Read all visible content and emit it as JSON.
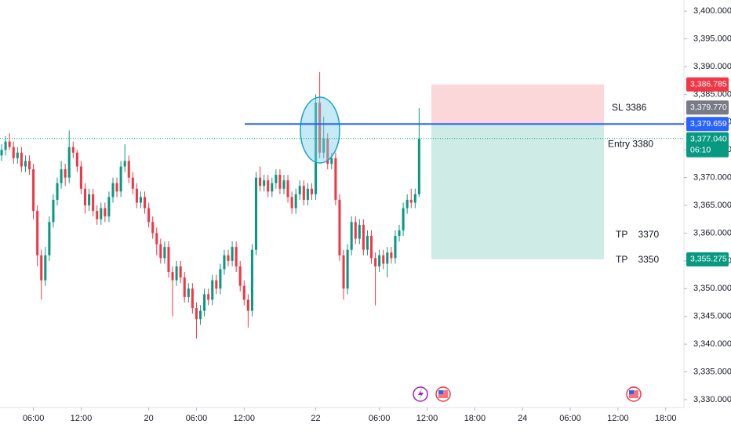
{
  "chart_data": {
    "type": "candlestick",
    "up_color": "#089981",
    "down_color": "#f23645",
    "open": [
      3374.0,
      3375.0,
      3376.5,
      3375.5,
      3373.5,
      3374.5,
      3372.0,
      3373.0,
      3371.5,
      3364.0,
      3356.0,
      3351.5,
      3356.0,
      3362.0,
      3366.0,
      3369.0,
      3371.5,
      3370.0,
      3375.5,
      3374.5,
      3372.0,
      3368.0,
      3365.0,
      3367.0,
      3364.0,
      3362.5,
      3364.5,
      3363.0,
      3366.5,
      3369.0,
      3367.5,
      3372.0,
      3373.0,
      3370.0,
      3368.0,
      3365.5,
      3366.5,
      3364.5,
      3362.0,
      3360.0,
      3358.0,
      3355.5,
      3357.5,
      3353.0,
      3351.5,
      3354.0,
      3352.0,
      3348.5,
      3350.0,
      3346.5,
      3344.5,
      3346.0,
      3349.0,
      3348.0,
      3351.5,
      3350.0,
      3353.5,
      3356.0,
      3355.0,
      3357.5,
      3354.0,
      3350.5,
      3348.0,
      3346.0,
      3357.0,
      3370.0,
      3368.5,
      3369.5,
      3367.5,
      3369.0,
      3370.5,
      3368.0,
      3369.5,
      3366.5,
      3364.5,
      3367.0,
      3368.5,
      3366.0,
      3368.0,
      3367.0,
      3383.5,
      3374.5,
      3377.0,
      3372.5,
      3373.5,
      3366.0,
      3356.0,
      3350.0,
      3357.0,
      3362.0,
      3359.0,
      3361.5,
      3357.0,
      3359.5,
      3355.5,
      3354.0,
      3356.0,
      3354.5,
      3356.5,
      3355.5,
      3359.5,
      3360.5,
      3364.5,
      3366.0,
      3365.5,
      3367.0
    ],
    "high": [
      3376,
      3377.5,
      3378,
      3376.5,
      3375.5,
      3375.5,
      3374,
      3374,
      3372.5,
      3365,
      3357,
      3357.5,
      3363,
      3367,
      3370,
      3373,
      3372.5,
      3378.5,
      3376.5,
      3375,
      3373,
      3369,
      3368,
      3368,
      3365,
      3365.5,
      3365.5,
      3367.5,
      3370,
      3370,
      3373,
      3376,
      3374,
      3371,
      3369,
      3367.5,
      3367.5,
      3365.5,
      3363,
      3361,
      3359,
      3358.5,
      3358.5,
      3354,
      3355,
      3355,
      3353,
      3351,
      3351,
      3347.5,
      3347,
      3350,
      3350,
      3352.5,
      3352.5,
      3354.5,
      3357,
      3357,
      3358.5,
      3358.5,
      3355,
      3351.5,
      3349,
      3358,
      3371,
      3372,
      3370.5,
      3370.5,
      3370,
      3371.5,
      3371.5,
      3370.5,
      3370.5,
      3367.5,
      3368,
      3369.5,
      3369.5,
      3369,
      3369,
      3385,
      3389,
      3381,
      3378,
      3374.5,
      3374.5,
      3367,
      3357,
      3358,
      3363,
      3363,
      3362.5,
      3362.5,
      3360.5,
      3360.5,
      3356.5,
      3357,
      3357,
      3357.5,
      3357.5,
      3360.5,
      3361.5,
      3365.5,
      3367,
      3368,
      3368,
      3382.5
    ],
    "low": [
      3373,
      3374,
      3375,
      3372.5,
      3372.5,
      3371,
      3371,
      3370.5,
      3362.5,
      3354,
      3348,
      3350.5,
      3355,
      3361,
      3365,
      3368,
      3368.5,
      3369,
      3373.5,
      3371,
      3367,
      3363.5,
      3364,
      3363,
      3361.5,
      3361.5,
      3362,
      3362,
      3365.5,
      3366.5,
      3366.5,
      3371,
      3369,
      3367,
      3364.5,
      3364.5,
      3363.5,
      3361,
      3359,
      3356,
      3354.5,
      3354.5,
      3352,
      3345,
      3350.5,
      3351,
      3347.5,
      3347.5,
      3345.5,
      3341,
      3343.5,
      3345,
      3347,
      3347,
      3349,
      3349,
      3352.5,
      3354,
      3354,
      3353,
      3349.5,
      3347,
      3343,
      3345,
      3356,
      3367.5,
      3367.5,
      3366.5,
      3366.5,
      3368,
      3367,
      3367,
      3365.5,
      3363.5,
      3363.5,
      3366,
      3365,
      3365,
      3366,
      3366,
      3373.5,
      3373.5,
      3371.5,
      3371.5,
      3365,
      3355,
      3348,
      3349,
      3356,
      3358,
      3358,
      3356,
      3356,
      3354.5,
      3347,
      3353,
      3353.5,
      3352,
      3354.5,
      3354.5,
      3358.5,
      3359.5,
      3363.5,
      3364.5,
      3364.5,
      3366.5
    ],
    "close": [
      3375.0,
      3376.5,
      3375.5,
      3373.5,
      3374.5,
      3372.0,
      3373.0,
      3371.5,
      3364.0,
      3356.0,
      3351.5,
      3356.0,
      3362.0,
      3366.0,
      3369.0,
      3371.5,
      3370.0,
      3375.5,
      3374.5,
      3372.0,
      3368.0,
      3365.0,
      3367.0,
      3364.0,
      3362.5,
      3364.5,
      3363.0,
      3366.5,
      3369.0,
      3367.5,
      3372.0,
      3373.0,
      3370.0,
      3368.0,
      3365.5,
      3366.5,
      3364.5,
      3362.0,
      3360.0,
      3358.0,
      3355.5,
      3357.5,
      3353.0,
      3351.5,
      3354.0,
      3352.0,
      3348.5,
      3350.0,
      3346.5,
      3344.5,
      3346.0,
      3349.0,
      3348.0,
      3351.5,
      3350.0,
      3353.5,
      3356.0,
      3355.0,
      3357.5,
      3354.0,
      3350.5,
      3348.0,
      3346.0,
      3357.0,
      3370.0,
      3368.5,
      3369.5,
      3367.5,
      3369.0,
      3370.5,
      3368.0,
      3369.5,
      3366.5,
      3364.5,
      3367.0,
      3368.5,
      3366.0,
      3368.0,
      3367.0,
      3383.5,
      3374.5,
      3377.0,
      3372.5,
      3373.5,
      3366.0,
      3356.0,
      3350.0,
      3357.0,
      3362.0,
      3359.0,
      3361.5,
      3357.0,
      3359.5,
      3355.5,
      3354.0,
      3356.0,
      3354.5,
      3356.5,
      3355.5,
      3359.5,
      3360.5,
      3364.5,
      3366.0,
      3365.5,
      3367.0,
      3377.04
    ],
    "last_price_label": "3,377.040",
    "countdown": "06:10",
    "horizontal_line": {
      "value": 3379.659,
      "label": "3,379.659",
      "color": "#2962ff"
    },
    "position": {
      "stop": {
        "value": 3386.785,
        "label": "3,386.785",
        "color": "#f23645"
      },
      "entry": {
        "value": 3379.77,
        "label": "3,379.770",
        "color": "#787b86"
      },
      "target": {
        "value": 3355.275,
        "label": "3,355.275",
        "color": "#089981"
      }
    },
    "notes": [
      "SL 3386",
      "Entry 3380",
      "TP    3370",
      "TP    3350"
    ],
    "ylim": [
      3328.3,
      3402
    ],
    "yticks": [
      {
        "value": 3400,
        "label": "3,400.000"
      },
      {
        "value": 3395,
        "label": "3,395.000"
      },
      {
        "value": 3390,
        "label": "3,390.000"
      },
      {
        "value": 3385,
        "label": "3,385.000"
      },
      {
        "value": 3380,
        "label": "3,380.000"
      },
      {
        "value": 3375,
        "label": "3,375.000"
      },
      {
        "value": 3370,
        "label": "3,370.000"
      },
      {
        "value": 3365,
        "label": "3,365.000"
      },
      {
        "value": 3360,
        "label": "3,360.000"
      },
      {
        "value": 3355,
        "label": "3,355.000"
      },
      {
        "value": 3350,
        "label": "3,350.000"
      },
      {
        "value": 3345,
        "label": "3,345.000"
      },
      {
        "value": 3340,
        "label": "3,340.000"
      },
      {
        "value": 3335,
        "label": "3,335.000"
      },
      {
        "value": 3330,
        "label": "3,330.000"
      }
    ],
    "xlim": [
      -0.4,
      171.2
    ],
    "xticks": [
      {
        "value": 8,
        "label": "06:00"
      },
      {
        "value": 20,
        "label": "12:00"
      },
      {
        "value": 37,
        "label": "20"
      },
      {
        "value": 49,
        "label": "06:00"
      },
      {
        "value": 61,
        "label": "12:00"
      },
      {
        "value": 79,
        "label": "22"
      },
      {
        "value": 95,
        "label": "06:00"
      },
      {
        "value": 107,
        "label": "12:00"
      },
      {
        "value": 119,
        "label": "18:00"
      },
      {
        "value": 131,
        "label": "24"
      },
      {
        "value": 143,
        "label": "06:00"
      },
      {
        "value": 155,
        "label": "12:00"
      },
      {
        "value": 167,
        "label": "18:00"
      }
    ]
  }
}
